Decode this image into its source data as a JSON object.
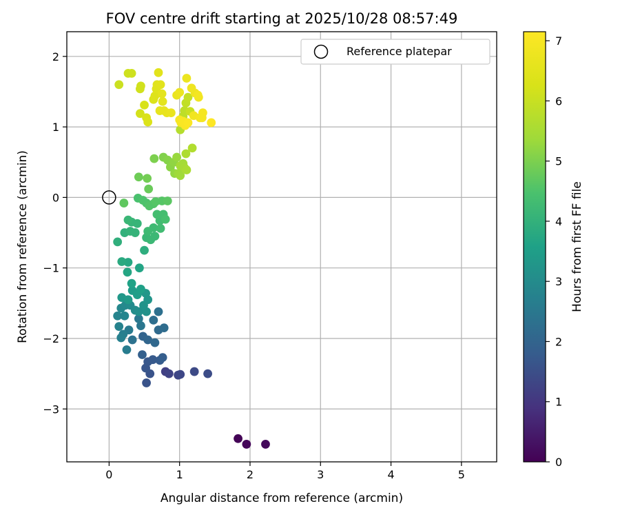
{
  "chart_data": {
    "type": "scatter",
    "title": "FOV centre drift starting at 2025/10/28 08:57:49",
    "xlabel": "Angular distance from reference (arcmin)",
    "ylabel": "Rotation from reference (arcmin)",
    "xlim": [
      -0.6,
      5.5
    ],
    "ylim": [
      -3.75,
      2.35
    ],
    "xticks": [
      0,
      1,
      2,
      3,
      4,
      5
    ],
    "yticks": [
      -3,
      -2,
      -1,
      0,
      1,
      2
    ],
    "xtick_labels": [
      "0",
      "1",
      "2",
      "3",
      "4",
      "5"
    ],
    "ytick_labels": [
      "−3",
      "−2",
      "−1",
      "0",
      "1",
      "2"
    ],
    "grid": true,
    "legend": {
      "position": "top-right",
      "entries": [
        "Reference platepar"
      ]
    },
    "reference_point": {
      "x": 0,
      "y": 0,
      "label": "Reference platepar"
    },
    "colorbar": {
      "label": "Hours from first FF file",
      "range": [
        0,
        7.15
      ],
      "ticks": [
        0,
        1,
        2,
        3,
        4,
        5,
        6,
        7
      ],
      "tick_labels": [
        "0",
        "1",
        "2",
        "3",
        "4",
        "5",
        "6",
        "7"
      ],
      "colormap": "viridis"
    },
    "points": [
      {
        "x": 1.83,
        "y": -3.42,
        "c": 0.05
      },
      {
        "x": 1.95,
        "y": -3.5,
        "c": 0.1
      },
      {
        "x": 2.22,
        "y": -3.5,
        "c": 0.15
      },
      {
        "x": 0.8,
        "y": -2.47,
        "c": 1.2
      },
      {
        "x": 0.85,
        "y": -2.5,
        "c": 1.25
      },
      {
        "x": 0.98,
        "y": -2.52,
        "c": 1.3
      },
      {
        "x": 1.01,
        "y": -2.51,
        "c": 1.35
      },
      {
        "x": 1.21,
        "y": -2.47,
        "c": 1.4
      },
      {
        "x": 1.4,
        "y": -2.5,
        "c": 1.45
      },
      {
        "x": 0.53,
        "y": -2.63,
        "c": 1.6
      },
      {
        "x": 0.58,
        "y": -2.5,
        "c": 1.6
      },
      {
        "x": 0.52,
        "y": -2.42,
        "c": 1.65
      },
      {
        "x": 0.55,
        "y": -2.33,
        "c": 1.7
      },
      {
        "x": 0.62,
        "y": -2.3,
        "c": 1.75
      },
      {
        "x": 0.72,
        "y": -2.31,
        "c": 1.8
      },
      {
        "x": 0.76,
        "y": -2.27,
        "c": 1.85
      },
      {
        "x": 0.47,
        "y": -2.23,
        "c": 1.9
      },
      {
        "x": 0.48,
        "y": -1.97,
        "c": 2.0
      },
      {
        "x": 0.55,
        "y": -2.02,
        "c": 2.05
      },
      {
        "x": 0.65,
        "y": -2.06,
        "c": 2.1
      },
      {
        "x": 0.7,
        "y": -1.88,
        "c": 2.15
      },
      {
        "x": 0.78,
        "y": -1.85,
        "c": 2.2
      },
      {
        "x": 0.63,
        "y": -1.74,
        "c": 2.25
      },
      {
        "x": 0.7,
        "y": -1.62,
        "c": 2.3
      },
      {
        "x": 0.33,
        "y": -2.02,
        "c": 2.35
      },
      {
        "x": 0.45,
        "y": -1.82,
        "c": 2.45
      },
      {
        "x": 0.42,
        "y": -1.72,
        "c": 2.5
      },
      {
        "x": 0.28,
        "y": -1.88,
        "c": 2.55
      },
      {
        "x": 0.25,
        "y": -2.16,
        "c": 2.6
      },
      {
        "x": 0.2,
        "y": -1.94,
        "c": 2.65
      },
      {
        "x": 0.17,
        "y": -1.99,
        "c": 2.7
      },
      {
        "x": 0.14,
        "y": -1.83,
        "c": 2.75
      },
      {
        "x": 0.12,
        "y": -1.68,
        "c": 2.8
      },
      {
        "x": 0.22,
        "y": -1.68,
        "c": 2.85
      },
      {
        "x": 0.17,
        "y": -1.57,
        "c": 2.9
      },
      {
        "x": 0.23,
        "y": -1.53,
        "c": 2.95
      },
      {
        "x": 0.3,
        "y": -1.53,
        "c": 3.0
      },
      {
        "x": 0.37,
        "y": -1.6,
        "c": 3.05
      },
      {
        "x": 0.42,
        "y": -1.62,
        "c": 3.1
      },
      {
        "x": 0.53,
        "y": -1.62,
        "c": 3.15
      },
      {
        "x": 0.49,
        "y": -1.53,
        "c": 3.2
      },
      {
        "x": 0.55,
        "y": -1.45,
        "c": 3.25
      },
      {
        "x": 0.52,
        "y": -1.36,
        "c": 3.3
      },
      {
        "x": 0.18,
        "y": -1.42,
        "c": 3.35
      },
      {
        "x": 0.27,
        "y": -1.45,
        "c": 3.4
      },
      {
        "x": 0.33,
        "y": -1.32,
        "c": 3.45
      },
      {
        "x": 0.4,
        "y": -1.38,
        "c": 3.5
      },
      {
        "x": 0.45,
        "y": -1.3,
        "c": 3.55
      },
      {
        "x": 0.32,
        "y": -1.22,
        "c": 3.6
      },
      {
        "x": 0.43,
        "y": -1.0,
        "c": 3.65
      },
      {
        "x": 0.26,
        "y": -1.06,
        "c": 3.7
      },
      {
        "x": 0.27,
        "y": -0.92,
        "c": 3.75
      },
      {
        "x": 0.18,
        "y": -0.91,
        "c": 3.8
      },
      {
        "x": 0.5,
        "y": -0.75,
        "c": 3.9
      },
      {
        "x": 0.12,
        "y": -0.63,
        "c": 3.95
      },
      {
        "x": 0.22,
        "y": -0.5,
        "c": 4.0
      },
      {
        "x": 0.3,
        "y": -0.48,
        "c": 4.05
      },
      {
        "x": 0.37,
        "y": -0.5,
        "c": 4.05
      },
      {
        "x": 0.32,
        "y": -0.35,
        "c": 4.1
      },
      {
        "x": 0.4,
        "y": -0.37,
        "c": 4.1
      },
      {
        "x": 0.27,
        "y": -0.32,
        "c": 4.15
      },
      {
        "x": 0.53,
        "y": -0.57,
        "c": 4.15
      },
      {
        "x": 0.59,
        "y": -0.6,
        "c": 4.2
      },
      {
        "x": 0.65,
        "y": -0.55,
        "c": 4.2
      },
      {
        "x": 0.55,
        "y": -0.48,
        "c": 4.25
      },
      {
        "x": 0.63,
        "y": -0.43,
        "c": 4.25
      },
      {
        "x": 0.73,
        "y": -0.44,
        "c": 4.3
      },
      {
        "x": 0.72,
        "y": -0.33,
        "c": 4.3
      },
      {
        "x": 0.68,
        "y": -0.24,
        "c": 4.35
      },
      {
        "x": 0.77,
        "y": -0.24,
        "c": 4.35
      },
      {
        "x": 0.8,
        "y": -0.31,
        "c": 4.4
      },
      {
        "x": 0.41,
        "y": -0.01,
        "c": 4.45
      },
      {
        "x": 0.48,
        "y": -0.04,
        "c": 4.5
      },
      {
        "x": 0.53,
        "y": -0.08,
        "c": 4.5
      },
      {
        "x": 0.57,
        "y": -0.12,
        "c": 4.55
      },
      {
        "x": 0.63,
        "y": -0.09,
        "c": 4.55
      },
      {
        "x": 0.66,
        "y": -0.06,
        "c": 4.6
      },
      {
        "x": 0.75,
        "y": -0.05,
        "c": 4.6
      },
      {
        "x": 0.83,
        "y": -0.05,
        "c": 4.65
      },
      {
        "x": 0.21,
        "y": -0.08,
        "c": 4.7
      },
      {
        "x": 0.56,
        "y": 0.12,
        "c": 4.8
      },
      {
        "x": 0.42,
        "y": 0.29,
        "c": 4.85
      },
      {
        "x": 0.54,
        "y": 0.27,
        "c": 4.9
      },
      {
        "x": 0.64,
        "y": 0.55,
        "c": 5.0
      },
      {
        "x": 0.77,
        "y": 0.57,
        "c": 5.05
      },
      {
        "x": 0.83,
        "y": 0.53,
        "c": 5.1
      },
      {
        "x": 0.87,
        "y": 0.43,
        "c": 5.15
      },
      {
        "x": 0.92,
        "y": 0.5,
        "c": 5.2
      },
      {
        "x": 0.93,
        "y": 0.34,
        "c": 5.25
      },
      {
        "x": 0.96,
        "y": 0.57,
        "c": 5.3
      },
      {
        "x": 0.98,
        "y": 0.34,
        "c": 5.35
      },
      {
        "x": 1.01,
        "y": 0.31,
        "c": 5.4
      },
      {
        "x": 1.01,
        "y": 0.45,
        "c": 5.45
      },
      {
        "x": 1.05,
        "y": 0.48,
        "c": 5.45
      },
      {
        "x": 1.07,
        "y": 0.42,
        "c": 5.5
      },
      {
        "x": 1.1,
        "y": 0.39,
        "c": 5.55
      },
      {
        "x": 1.09,
        "y": 0.62,
        "c": 5.6
      },
      {
        "x": 1.18,
        "y": 0.7,
        "c": 5.65
      },
      {
        "x": 1.01,
        "y": 0.96,
        "c": 5.7
      },
      {
        "x": 1.08,
        "y": 1.03,
        "c": 5.75
      },
      {
        "x": 1.05,
        "y": 1.15,
        "c": 5.8
      },
      {
        "x": 1.07,
        "y": 1.23,
        "c": 5.85
      },
      {
        "x": 1.09,
        "y": 1.34,
        "c": 5.9
      },
      {
        "x": 1.12,
        "y": 1.42,
        "c": 5.95
      },
      {
        "x": 1.15,
        "y": 1.22,
        "c": 6.0
      },
      {
        "x": 0.14,
        "y": 1.6,
        "c": 6.05
      },
      {
        "x": 0.27,
        "y": 1.76,
        "c": 6.1
      },
      {
        "x": 0.32,
        "y": 1.76,
        "c": 6.1
      },
      {
        "x": 0.44,
        "y": 1.54,
        "c": 6.15
      },
      {
        "x": 0.45,
        "y": 1.58,
        "c": 6.15
      },
      {
        "x": 0.44,
        "y": 1.19,
        "c": 6.2
      },
      {
        "x": 0.5,
        "y": 1.31,
        "c": 6.25
      },
      {
        "x": 0.53,
        "y": 1.13,
        "c": 6.3
      },
      {
        "x": 0.55,
        "y": 1.07,
        "c": 6.35
      },
      {
        "x": 0.63,
        "y": 1.39,
        "c": 6.35
      },
      {
        "x": 0.65,
        "y": 1.44,
        "c": 6.4
      },
      {
        "x": 0.67,
        "y": 1.54,
        "c": 6.45
      },
      {
        "x": 0.68,
        "y": 1.6,
        "c": 6.45
      },
      {
        "x": 0.7,
        "y": 1.77,
        "c": 6.5
      },
      {
        "x": 0.73,
        "y": 1.6,
        "c": 6.5
      },
      {
        "x": 0.75,
        "y": 1.47,
        "c": 6.55
      },
      {
        "x": 0.76,
        "y": 1.36,
        "c": 6.55
      },
      {
        "x": 0.72,
        "y": 1.23,
        "c": 6.6
      },
      {
        "x": 0.78,
        "y": 1.23,
        "c": 6.65
      },
      {
        "x": 0.82,
        "y": 1.2,
        "c": 6.65
      },
      {
        "x": 0.88,
        "y": 1.2,
        "c": 6.7
      },
      {
        "x": 0.96,
        "y": 1.45,
        "c": 6.7
      },
      {
        "x": 1.0,
        "y": 1.49,
        "c": 6.75
      },
      {
        "x": 1.1,
        "y": 1.69,
        "c": 6.75
      },
      {
        "x": 1.17,
        "y": 1.55,
        "c": 6.8
      },
      {
        "x": 1.22,
        "y": 1.48,
        "c": 6.8
      },
      {
        "x": 1.2,
        "y": 1.16,
        "c": 6.85
      },
      {
        "x": 1.27,
        "y": 1.42,
        "c": 6.85
      },
      {
        "x": 1.26,
        "y": 1.45,
        "c": 6.9
      },
      {
        "x": 1.29,
        "y": 1.13,
        "c": 6.9
      },
      {
        "x": 1.33,
        "y": 1.2,
        "c": 6.95
      },
      {
        "x": 1.32,
        "y": 1.13,
        "c": 6.95
      },
      {
        "x": 1.0,
        "y": 1.1,
        "c": 7.0
      },
      {
        "x": 1.02,
        "y": 1.06,
        "c": 7.0
      },
      {
        "x": 1.05,
        "y": 1.08,
        "c": 7.05
      },
      {
        "x": 1.08,
        "y": 1.02,
        "c": 7.05
      },
      {
        "x": 1.12,
        "y": 1.06,
        "c": 7.1
      },
      {
        "x": 1.45,
        "y": 1.06,
        "c": 7.15
      }
    ]
  }
}
